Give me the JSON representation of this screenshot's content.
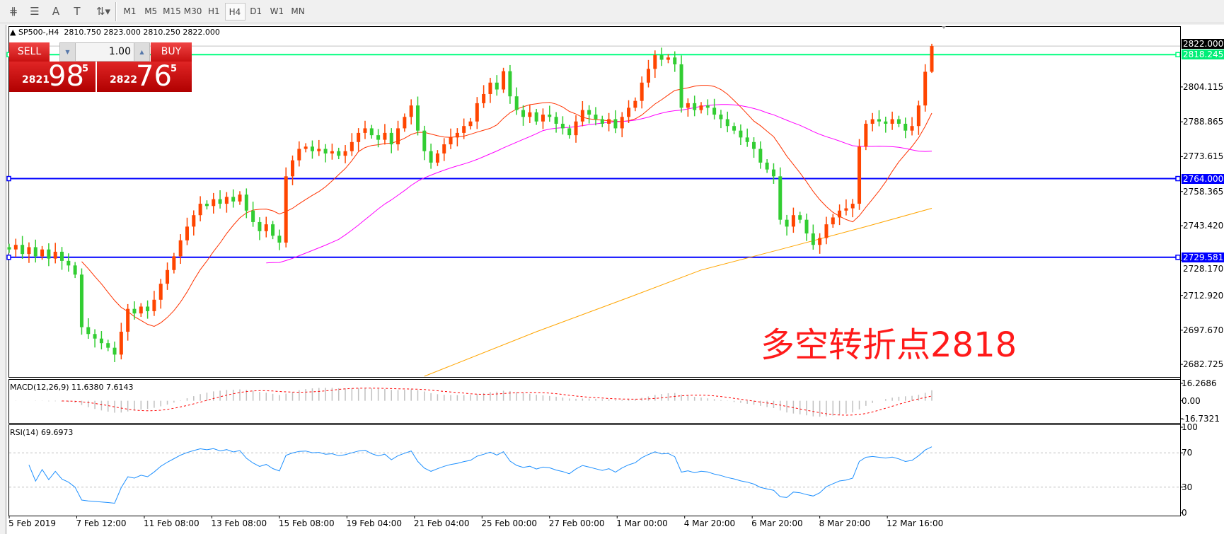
{
  "toolbar": {
    "tools": [
      {
        "icon": "fibonacci-expansion-icon",
        "glyph": "⋕"
      },
      {
        "icon": "fibonacci-fan-icon",
        "glyph": "☰"
      },
      {
        "icon": "text-icon",
        "glyph": "A"
      },
      {
        "icon": "text-label-icon",
        "glyph": "T"
      },
      {
        "icon": "arrows-icon",
        "glyph": "⇅▾"
      }
    ],
    "timeframes": [
      "M1",
      "M5",
      "M15",
      "M30",
      "H1",
      "H4",
      "D1",
      "W1",
      "MN"
    ],
    "active_timeframe": "H4"
  },
  "chart_header": {
    "symbol": "SP500-,H4",
    "open": "2810.750",
    "high": "2823.000",
    "low": "2810.250",
    "close": "2822.000"
  },
  "trade_panel": {
    "sell_label": "SELL",
    "buy_label": "BUY",
    "lot": "1.00",
    "sell_big": "2821",
    "sell_main": "98",
    "sell_sup": "5",
    "buy_big": "2822",
    "buy_main": "76",
    "buy_sup": "5"
  },
  "annotation": "多空转折点2818",
  "colors": {
    "bull": "#ff4500",
    "bear": "#32cd32",
    "ma_fast": "#ff3300",
    "ma_mid": "#ff00ff",
    "ma_slow": "#ffa500",
    "green_line": "#00ff7f",
    "blue_line": "#0000ff",
    "rsi": "#1e90ff",
    "macd_signal": "#ff0000",
    "macd_hist": "#c0c0c0"
  },
  "chart_data": {
    "type": "candlestick",
    "price_axis": {
      "ticks": [
        "2804.115",
        "2788.865",
        "2773.615",
        "2758.365",
        "2743.420",
        "2728.170",
        "2712.920",
        "2697.670",
        "2682.725"
      ],
      "range": [
        2677.2,
        2830.7
      ]
    },
    "price_labels": {
      "bid": "2822.000",
      "green_level": "2818.245",
      "blue_level_1": "2764.000",
      "blue_level_2": "2729.581"
    },
    "levels": {
      "bid": 2822.0,
      "green": 2818.245,
      "blue1": 2764.0,
      "blue2": 2729.581
    },
    "x_labels": [
      "5 Feb 2019",
      "7 Feb 12:00",
      "11 Feb 08:00",
      "13 Feb 08:00",
      "15 Feb 08:00",
      "19 Feb 04:00",
      "21 Feb 04:00",
      "25 Feb 00:00",
      "27 Feb 00:00",
      "1 Mar 00:00",
      "4 Mar 20:00",
      "6 Mar 20:00",
      "8 Mar 20:00",
      "12 Mar 16:00"
    ],
    "closes": [
      2733,
      2735,
      2731,
      2734,
      2730,
      2733,
      2729,
      2732,
      2728,
      2726,
      2722,
      2699,
      2696,
      2694,
      2692,
      2690,
      2687,
      2697,
      2707,
      2705,
      2708,
      2706,
      2711,
      2718,
      2724,
      2730,
      2737,
      2743,
      2748,
      2753,
      2752,
      2755,
      2753,
      2756,
      2754,
      2757,
      2750,
      2745,
      2741,
      2744,
      2739,
      2736,
      2765,
      2772,
      2777,
      2778,
      2776,
      2777,
      2775,
      2776,
      2774,
      2776,
      2780,
      2784,
      2786,
      2783,
      2781,
      2784,
      2779,
      2786,
      2791,
      2796,
      2785,
      2776,
      2771,
      2775,
      2779,
      2782,
      2784,
      2787,
      2789,
      2797,
      2801,
      2806,
      2803,
      2811,
      2800,
      2794,
      2791,
      2793,
      2789,
      2792,
      2791,
      2788,
      2786,
      2783,
      2789,
      2794,
      2792,
      2790,
      2788,
      2790,
      2786,
      2791,
      2795,
      2798,
      2806,
      2812,
      2818,
      2816,
      2817,
      2814,
      2795,
      2797,
      2794,
      2796,
      2795,
      2792,
      2790,
      2787,
      2785,
      2782,
      2780,
      2777,
      2771,
      2768,
      2765,
      2746,
      2743,
      2748,
      2746,
      2740,
      2735,
      2738,
      2744,
      2747,
      2750,
      2751,
      2753,
      2778,
      2788,
      2790,
      2789,
      2788,
      2790,
      2788,
      2785,
      2787,
      2796,
      2810.75,
      2822
    ],
    "last_bar": {
      "open": 2810.75,
      "high": 2823.0,
      "low": 2810.25,
      "close": 2822.0
    },
    "ma_slow_points": [
      [
        63,
        2677.5
      ],
      [
        80,
        2697
      ],
      [
        94,
        2712
      ],
      [
        105,
        2724
      ],
      [
        117,
        2733
      ],
      [
        130,
        2743
      ],
      [
        140,
        2751
      ]
    ],
    "macd": {
      "label": "MACD(12,26,9) 11.6380 7.6143",
      "ticks": [
        "16.2686",
        "0.00",
        "-16.7321"
      ],
      "range": [
        -16.7321,
        16.2686
      ]
    },
    "rsi": {
      "label": "RSI(14) 69.6973",
      "ticks": [
        "100",
        "70",
        "30",
        "0"
      ],
      "levels": [
        70,
        30
      ]
    }
  }
}
